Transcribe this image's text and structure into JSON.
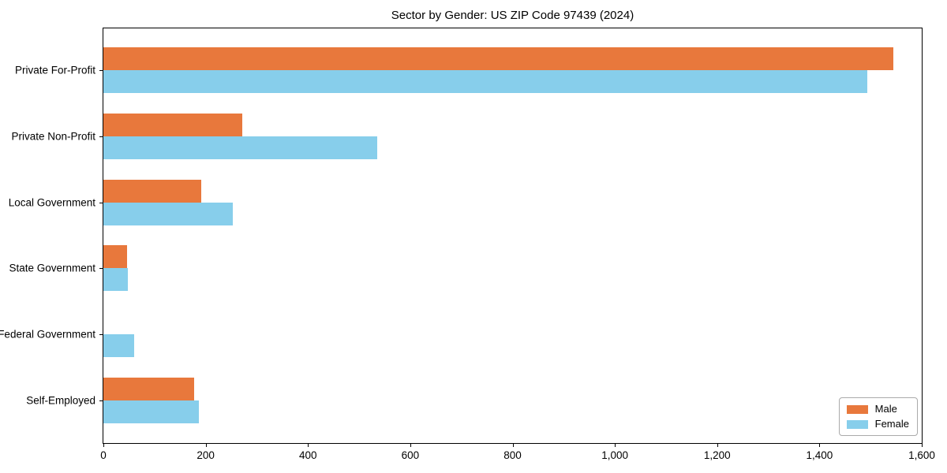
{
  "chart_data": {
    "type": "bar",
    "orientation": "horizontal",
    "title": "Sector by Gender: US ZIP Code 97439 (2024)",
    "xlabel": "",
    "ylabel": "",
    "categories": [
      "Private For-Profit",
      "Private Non-Profit",
      "Local Government",
      "State Government",
      "Federal Government",
      "Self-Employed"
    ],
    "series": [
      {
        "name": "Male",
        "color": "#E8783C",
        "values": [
          1544,
          272,
          192,
          47,
          0,
          178
        ]
      },
      {
        "name": "Female",
        "color": "#87CEEB",
        "values": [
          1494,
          536,
          253,
          48,
          60,
          186
        ]
      }
    ],
    "xlim": [
      0,
      1600
    ],
    "xticks": [
      0,
      200,
      400,
      600,
      800,
      1000,
      1200,
      1400,
      1600
    ],
    "xtick_labels": [
      "0",
      "200",
      "400",
      "600",
      "800",
      "1,000",
      "1,200",
      "1,400",
      "1,600"
    ],
    "grid": false,
    "legend_position": "lower right",
    "legend_items": [
      {
        "label": "Male",
        "color": "#E8783C"
      },
      {
        "label": "Female",
        "color": "#87CEEB"
      }
    ]
  },
  "colors": {
    "male": "#E8783C",
    "female": "#87CEEB",
    "axis": "#000000",
    "background": "#ffffff",
    "legend_border": "#aaaaaa"
  }
}
